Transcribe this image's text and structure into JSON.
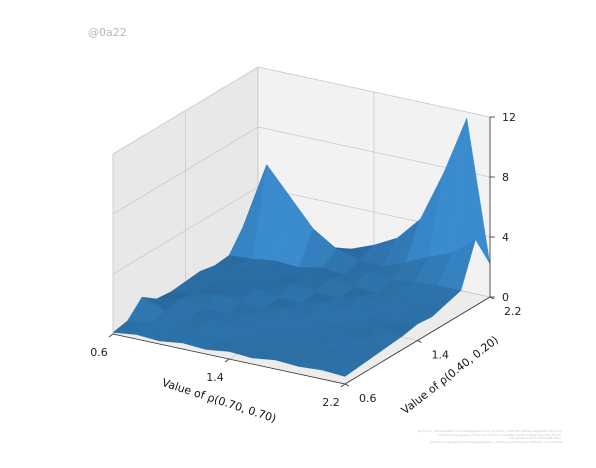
{
  "watermark": "@0a22",
  "credits": "by John C. Davis/Kodaira (cmodzelf@gmail.com) and Ivan Yu@NTNF (ipeter.jus@gmail.com) and Dimitrios Karagkalis (cmod) and Theodor Sa@NRC; Pantheros@gmail.com; forum: kmj.smithomas.com/Hm/pdf. https: github.com/jan/quantum/entropy/quantum_states_experiment.py Methods: an 1.000.68",
  "colors": {
    "surface": "#2b6fa6",
    "surface_light": "#3a8ccf",
    "surface_dark": "#0e2a45",
    "pane": "#f2f2f2",
    "pane_side": "#e8e8e8",
    "grid": "#c9c9c9"
  },
  "chart_data": {
    "type": "surface3d",
    "xlabel": "Value of ρ(0.70, 0.70)",
    "ylabel": "Value of ρ(0.40, 0.20)",
    "zlabel": "",
    "x_ticks": [
      "0.6",
      "1.4",
      "2.2"
    ],
    "y_ticks": [
      "0.6",
      "1.4",
      "2.2"
    ],
    "z_ticks": [
      "0",
      "4",
      "8",
      "12"
    ],
    "xlim": [
      0.6,
      2.2
    ],
    "ylim": [
      0.6,
      2.2
    ],
    "zlim": [
      0,
      12
    ],
    "grid": true,
    "x": [
      0.6,
      0.76,
      0.92,
      1.08,
      1.24,
      1.4,
      1.56,
      1.72,
      1.88,
      2.04,
      2.2
    ],
    "y": [
      0.6,
      0.76,
      0.92,
      1.08,
      1.24,
      1.4,
      1.56,
      1.72,
      1.88,
      2.04,
      2.2
    ],
    "z": [
      [
        0.1,
        0.3,
        0.2,
        0.4,
        0.3,
        0.5,
        0.4,
        0.6,
        0.5,
        0.6,
        0.5
      ],
      [
        0.3,
        0.5,
        0.4,
        0.6,
        0.5,
        0.4,
        0.6,
        0.5,
        0.7,
        0.6,
        0.6
      ],
      [
        1.3,
        0.7,
        0.5,
        0.8,
        0.6,
        0.7,
        0.5,
        0.8,
        0.6,
        0.7,
        0.7
      ],
      [
        0.6,
        0.9,
        0.7,
        0.6,
        0.9,
        0.7,
        0.8,
        0.6,
        0.9,
        0.8,
        0.8
      ],
      [
        0.5,
        0.7,
        1.0,
        0.8,
        0.7,
        1.1,
        0.8,
        0.9,
        0.7,
        1.0,
        0.9
      ],
      [
        0.6,
        0.8,
        0.7,
        1.1,
        0.9,
        0.8,
        1.2,
        0.9,
        1.0,
        0.8,
        1.1
      ],
      [
        0.7,
        0.6,
        0.9,
        0.8,
        1.2,
        1.0,
        0.9,
        1.3,
        1.0,
        1.2,
        1.0
      ],
      [
        0.5,
        0.8,
        0.7,
        1.0,
        0.9,
        1.3,
        1.1,
        1.0,
        1.4,
        1.1,
        1.3
      ],
      [
        0.6,
        0.7,
        0.9,
        0.8,
        1.1,
        1.0,
        1.5,
        1.3,
        1.5,
        1.6,
        1.6
      ],
      [
        2.0,
        6.4,
        4.6,
        2.8,
        1.8,
        1.4,
        1.3,
        1.9,
        2.6,
        3.2,
        4.4
      ],
      [
        0.4,
        1.8,
        1.4,
        1.0,
        1.2,
        1.8,
        2.6,
        4.2,
        7.6,
        11.6,
        2.2
      ]
    ]
  }
}
